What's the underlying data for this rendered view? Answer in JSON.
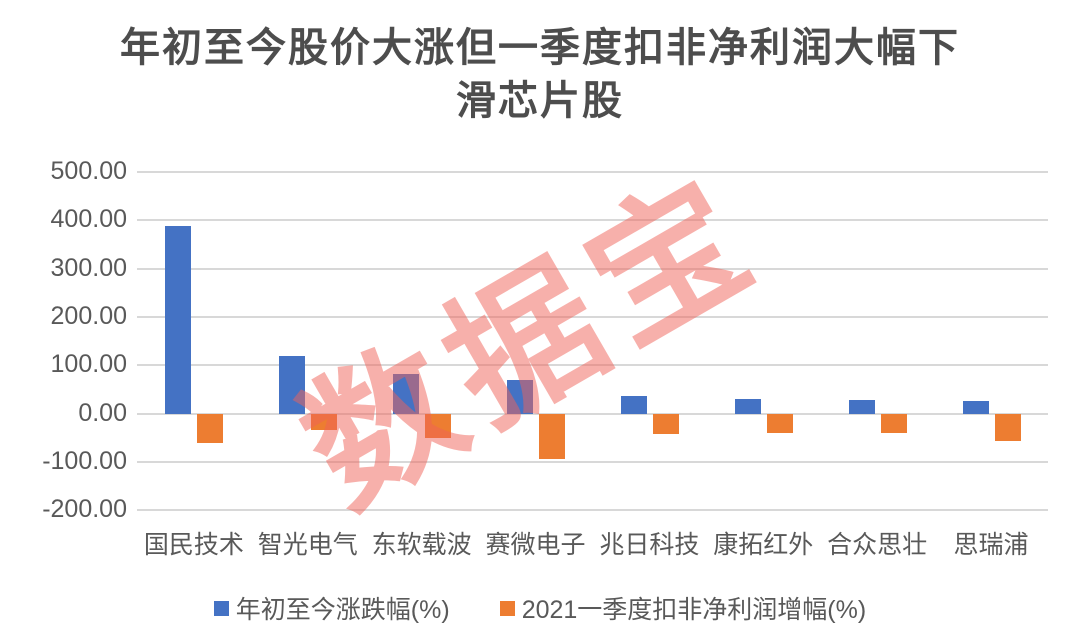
{
  "title": {
    "line1": "年初至今股价大涨但一季度扣非净利润大幅下",
    "line2": "滑芯片股"
  },
  "watermark_text": "数据宝",
  "colors": {
    "grid": "#d8d8d8",
    "tick_text": "#595959",
    "title_text": "#4d4d4d",
    "watermark": "rgba(240,97,88,0.5)",
    "series_blue": "#4472C4",
    "series_orange": "#ED7D31"
  },
  "chart_data": {
    "type": "bar",
    "title": "年初至今股价大涨但一季度扣非净利润大幅下滑芯片股",
    "categories": [
      "国民技术",
      "智光电气",
      "东软载波",
      "赛微电子",
      "兆日科技",
      "康拓红外",
      "合众思壮",
      "思瑞浦"
    ],
    "series": [
      {
        "name": "年初至今涨跌幅(%)",
        "color": "#4472C4",
        "values": [
          388,
          120,
          82,
          70,
          37,
          31,
          28,
          26
        ]
      },
      {
        "name": "2021一季度扣非净利润增幅(%)",
        "color": "#ED7D31",
        "values": [
          -60,
          -34,
          -50,
          -94,
          -43,
          -40,
          -40,
          -56
        ]
      }
    ],
    "ylim": [
      -200,
      500
    ],
    "yticks": [
      500,
      400,
      300,
      200,
      100,
      0,
      -100,
      -200
    ],
    "ytick_labels": [
      "500.00",
      "400.00",
      "300.00",
      "200.00",
      "100.00",
      "0.00",
      "-100.00",
      "-200.00"
    ],
    "xlabel": "",
    "ylabel": "",
    "grid": true,
    "legend_position": "bottom"
  }
}
